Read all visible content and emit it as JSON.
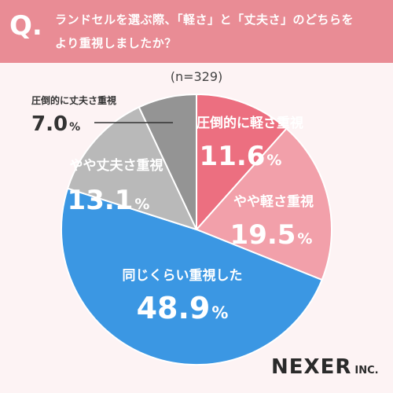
{
  "header": {
    "q_mark": "Q.",
    "question_line1": "ランドセルを選ぶ際、「軽さ」と「丈夫さ」のどちらを",
    "question_line2": "より重視しましたか？"
  },
  "sample_size": "(n=329)",
  "logo": {
    "main": "NEXER",
    "suffix": "INC."
  },
  "chart_data": {
    "type": "pie",
    "title": "",
    "unit": "%",
    "slices": [
      {
        "label": "圧倒的に軽さ重視",
        "value": 11.6,
        "color": "#ec6f80"
      },
      {
        "label": "やや軽さ重視",
        "value": 19.5,
        "color": "#f2a0aa"
      },
      {
        "label": "同じくらい重視した",
        "value": 48.9,
        "color": "#3b97e3"
      },
      {
        "label": "やや丈夫さ重視",
        "value": 13.1,
        "color": "#b9b9b9"
      },
      {
        "label": "圧倒的に丈夫さ重視",
        "value": 7.0,
        "color": "#949494"
      }
    ],
    "start": "12 o'clock",
    "direction": "clockwise"
  }
}
